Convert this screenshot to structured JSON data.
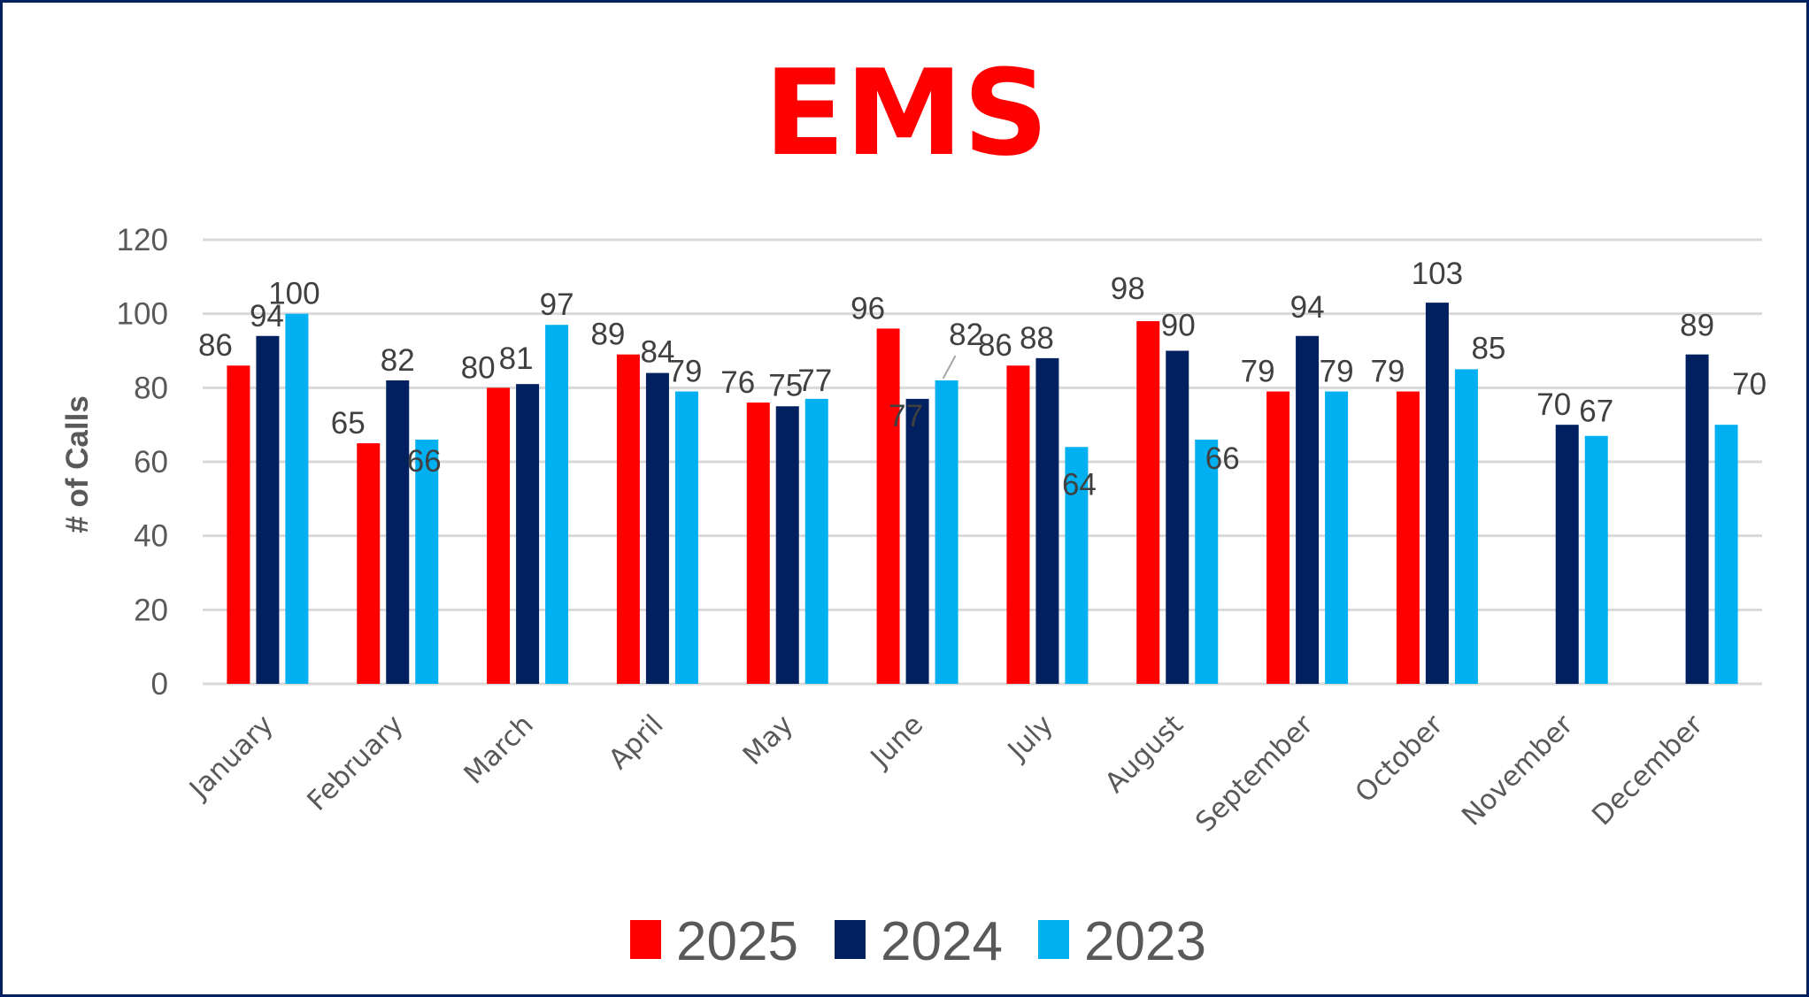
{
  "chart_data": {
    "type": "bar",
    "title": "EMS",
    "xlabel": "",
    "ylabel": "# of Calls",
    "ylim": [
      0,
      120
    ],
    "yticks": [
      0,
      20,
      40,
      60,
      80,
      100,
      120
    ],
    "ytick_labels": [
      "0",
      "20",
      "40",
      "60",
      "80",
      "100",
      "120"
    ],
    "grid": true,
    "legend_position": "bottom",
    "categories": [
      "January",
      "February",
      "March",
      "April",
      "May",
      "June",
      "July",
      "August",
      "September",
      "October",
      "November",
      "December"
    ],
    "series": [
      {
        "name": "2025",
        "color": "#FF0000",
        "values": [
          86,
          65,
          80,
          89,
          76,
          96,
          86,
          98,
          79,
          79,
          null,
          null
        ]
      },
      {
        "name": "2024",
        "color": "#002060",
        "values": [
          94,
          82,
          81,
          84,
          75,
          77,
          88,
          90,
          94,
          103,
          70,
          89
        ]
      },
      {
        "name": "2023",
        "color": "#00B0F0",
        "values": [
          100,
          66,
          97,
          79,
          77,
          82,
          64,
          66,
          79,
          85,
          67,
          70
        ]
      }
    ]
  },
  "colors": {
    "title": "#FF0000",
    "border": "#002060",
    "gridline": "#D9D9D9",
    "axis_text": "#595959",
    "data_label": "#404040"
  }
}
